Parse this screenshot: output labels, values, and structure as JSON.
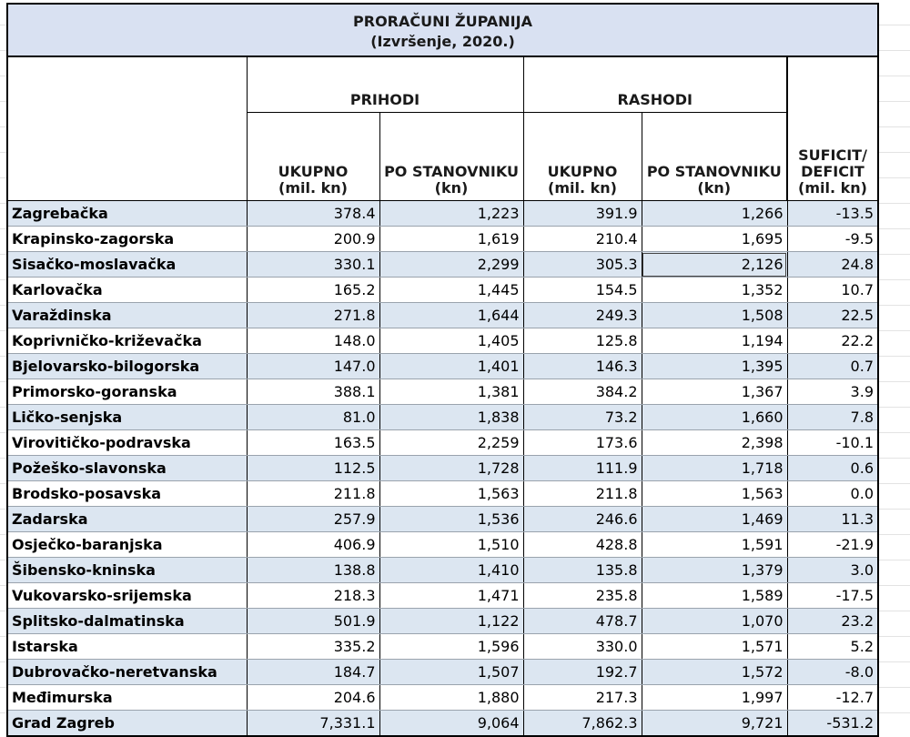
{
  "title": "PRORAČUNI ŽUPANIJA",
  "subtitle": "(Izvršenje, 2020.)",
  "groups": {
    "prihodi": "PRIHODI",
    "rashodi": "RASHODI"
  },
  "headers": {
    "ukupno": [
      "UKUPNO",
      "(mil. kn)"
    ],
    "po_stanovniku": [
      "PO STANOVNIKU",
      "(kn)"
    ],
    "suficit": [
      "SUFICIT/",
      "DEFICIT",
      "(mil. kn)"
    ]
  },
  "rows": [
    {
      "name": "Zagrebačka",
      "pu": "378.4",
      "ps": "1,223",
      "ru": "391.9",
      "rs": "1,266",
      "sd": "-13.5"
    },
    {
      "name": "Krapinsko-zagorska",
      "pu": "200.9",
      "ps": "1,619",
      "ru": "210.4",
      "rs": "1,695",
      "sd": "-9.5"
    },
    {
      "name": "Sisačko-moslavačka",
      "pu": "330.1",
      "ps": "2,299",
      "ru": "305.3",
      "rs": "2,126",
      "sd": "24.8"
    },
    {
      "name": "Karlovačka",
      "pu": "165.2",
      "ps": "1,445",
      "ru": "154.5",
      "rs": "1,352",
      "sd": "10.7"
    },
    {
      "name": "Varaždinska",
      "pu": "271.8",
      "ps": "1,644",
      "ru": "249.3",
      "rs": "1,508",
      "sd": "22.5"
    },
    {
      "name": "Koprivničko-križevačka",
      "pu": "148.0",
      "ps": "1,405",
      "ru": "125.8",
      "rs": "1,194",
      "sd": "22.2"
    },
    {
      "name": "Bjelovarsko-bilogorska",
      "pu": "147.0",
      "ps": "1,401",
      "ru": "146.3",
      "rs": "1,395",
      "sd": "0.7"
    },
    {
      "name": "Primorsko-goranska",
      "pu": "388.1",
      "ps": "1,381",
      "ru": "384.2",
      "rs": "1,367",
      "sd": "3.9"
    },
    {
      "name": "Ličko-senjska",
      "pu": "81.0",
      "ps": "1,838",
      "ru": "73.2",
      "rs": "1,660",
      "sd": "7.8"
    },
    {
      "name": "Virovitičko-podravska",
      "pu": "163.5",
      "ps": "2,259",
      "ru": "173.6",
      "rs": "2,398",
      "sd": "-10.1"
    },
    {
      "name": "Požeško-slavonska",
      "pu": "112.5",
      "ps": "1,728",
      "ru": "111.9",
      "rs": "1,718",
      "sd": "0.6"
    },
    {
      "name": "Brodsko-posavska",
      "pu": "211.8",
      "ps": "1,563",
      "ru": "211.8",
      "rs": "1,563",
      "sd": "0.0"
    },
    {
      "name": "Zadarska",
      "pu": "257.9",
      "ps": "1,536",
      "ru": "246.6",
      "rs": "1,469",
      "sd": "11.3"
    },
    {
      "name": "Osječko-baranjska",
      "pu": "406.9",
      "ps": "1,510",
      "ru": "428.8",
      "rs": "1,591",
      "sd": "-21.9"
    },
    {
      "name": "Šibensko-kninska",
      "pu": "138.8",
      "ps": "1,410",
      "ru": "135.8",
      "rs": "1,379",
      "sd": "3.0"
    },
    {
      "name": "Vukovarsko-srijemska",
      "pu": "218.3",
      "ps": "1,471",
      "ru": "235.8",
      "rs": "1,589",
      "sd": "-17.5"
    },
    {
      "name": "Splitsko-dalmatinska",
      "pu": "501.9",
      "ps": "1,122",
      "ru": "478.7",
      "rs": "1,070",
      "sd": "23.2"
    },
    {
      "name": "Istarska",
      "pu": "335.2",
      "ps": "1,596",
      "ru": "330.0",
      "rs": "1,571",
      "sd": "5.2"
    },
    {
      "name": "Dubrovačko-neretvanska",
      "pu": "184.7",
      "ps": "1,507",
      "ru": "192.7",
      "rs": "1,572",
      "sd": "-8.0"
    },
    {
      "name": "Međimurska",
      "pu": "204.6",
      "ps": "1,880",
      "ru": "217.3",
      "rs": "1,997",
      "sd": "-12.7"
    },
    {
      "name": "Grad Zagreb",
      "pu": "7,331.1",
      "ps": "9,064",
      "ru": "7,862.3",
      "rs": "9,721",
      "sd": "-531.2"
    }
  ],
  "colors": {
    "title_fill": "#d9e1f2",
    "row_shade": "#dce6f1"
  }
}
